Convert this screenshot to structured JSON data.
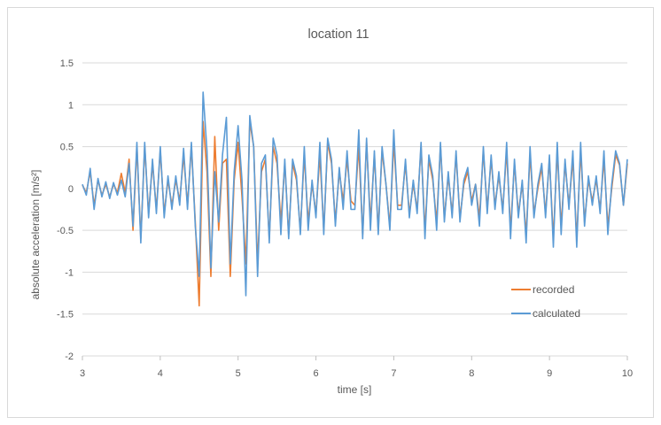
{
  "chart_data": {
    "type": "line",
    "title": "location 11",
    "xlabel": "time [s]",
    "ylabel": "absolute acceleration [m/s²]",
    "xlim": [
      3,
      10
    ],
    "ylim": [
      -2,
      1.5
    ],
    "x_ticks": [
      "3",
      "4",
      "5",
      "6",
      "7",
      "8",
      "9",
      "10"
    ],
    "y_ticks": [
      "-2",
      "-1.5",
      "-1",
      "-0.5",
      "0",
      "0.5",
      "1",
      "1.5"
    ],
    "grid": "horizontal",
    "legend_position": "bottom-right",
    "series": [
      {
        "name": "recorded",
        "color": "#ed7d31",
        "x": [
          3.0,
          3.05,
          3.1,
          3.15,
          3.2,
          3.25,
          3.3,
          3.35,
          3.4,
          3.45,
          3.5,
          3.55,
          3.6,
          3.65,
          3.7,
          3.75,
          3.8,
          3.85,
          3.9,
          3.95,
          4.0,
          4.05,
          4.1,
          4.15,
          4.2,
          4.25,
          4.3,
          4.35,
          4.4,
          4.45,
          4.5,
          4.55,
          4.6,
          4.65,
          4.7,
          4.75,
          4.8,
          4.85,
          4.9,
          4.95,
          5.0,
          5.05,
          5.1,
          5.15,
          5.2,
          5.25,
          5.3,
          5.35,
          5.4,
          5.45,
          5.5,
          5.55,
          5.6,
          5.65,
          5.7,
          5.75,
          5.8,
          5.85,
          5.9,
          5.95,
          6.0,
          6.05,
          6.1,
          6.15,
          6.2,
          6.25,
          6.3,
          6.35,
          6.4,
          6.45,
          6.5,
          6.55,
          6.6,
          6.65,
          6.7,
          6.75,
          6.8,
          6.85,
          6.9,
          6.95,
          7.0,
          7.05,
          7.1,
          7.15,
          7.2,
          7.25,
          7.3,
          7.35,
          7.4,
          7.45,
          7.5,
          7.55,
          7.6,
          7.65,
          7.7,
          7.75,
          7.8,
          7.85,
          7.9,
          7.95,
          8.0,
          8.05,
          8.1,
          8.15,
          8.2,
          8.25,
          8.3,
          8.35,
          8.4,
          8.45,
          8.5,
          8.55,
          8.6,
          8.65,
          8.7,
          8.75,
          8.8,
          8.85,
          8.9,
          8.95,
          9.0,
          9.05,
          9.1,
          9.15,
          9.2,
          9.25,
          9.3,
          9.35,
          9.4,
          9.45,
          9.5,
          9.55,
          9.6,
          9.65,
          9.7,
          9.75,
          9.8,
          9.85,
          9.9,
          9.95,
          10.0
        ],
        "values": [
          0.04,
          -0.05,
          0.2,
          -0.2,
          0.1,
          -0.08,
          0.05,
          -0.1,
          0.05,
          -0.05,
          0.18,
          -0.05,
          0.35,
          -0.5,
          0.5,
          -0.6,
          0.5,
          -0.3,
          0.3,
          -0.25,
          0.45,
          -0.3,
          0.1,
          -0.2,
          0.1,
          -0.15,
          0.4,
          -0.2,
          0.5,
          -0.4,
          -1.4,
          0.8,
          0.2,
          -1.05,
          0.62,
          -0.5,
          0.3,
          0.35,
          -1.05,
          0.1,
          0.55,
          -0.1,
          -0.9,
          0.8,
          0.5,
          -0.9,
          0.2,
          0.35,
          -0.6,
          0.5,
          0.3,
          -0.4,
          0.3,
          -0.55,
          0.3,
          0.1,
          -0.5,
          0.4,
          -0.4,
          0.05,
          -0.3,
          0.4,
          -0.5,
          0.55,
          0.3,
          -0.4,
          0.2,
          -0.15,
          0.35,
          -0.15,
          -0.2,
          0.5,
          -0.55,
          0.55,
          -0.4,
          0.4,
          -0.5,
          0.45,
          0.05,
          -0.45,
          0.55,
          -0.2,
          -0.2,
          0.3,
          -0.3,
          0.05,
          -0.25,
          0.5,
          -0.5,
          0.35,
          0.1,
          -0.4,
          0.5,
          -0.35,
          0.15,
          -0.3,
          0.4,
          -0.35,
          0.05,
          0.2,
          -0.15,
          0.05,
          -0.35,
          0.45,
          -0.25,
          0.35,
          -0.2,
          0.15,
          -0.25,
          0.45,
          -0.5,
          0.3,
          -0.3,
          0.05,
          -0.55,
          0.4,
          -0.3,
          0.0,
          0.25,
          -0.3,
          0.35,
          -0.6,
          0.45,
          -0.45,
          0.3,
          -0.2,
          0.35,
          -0.6,
          0.45,
          -0.4,
          0.1,
          -0.15,
          0.1,
          -0.25,
          0.35,
          -0.45,
          0.0,
          0.4,
          0.28,
          -0.2,
          0.3
        ],
        "stroke_width": 1.6
      },
      {
        "name": "calculated",
        "color": "#5b9bd5",
        "x": [
          3.0,
          3.05,
          3.1,
          3.15,
          3.2,
          3.25,
          3.3,
          3.35,
          3.4,
          3.45,
          3.5,
          3.55,
          3.6,
          3.65,
          3.7,
          3.75,
          3.8,
          3.85,
          3.9,
          3.95,
          4.0,
          4.05,
          4.1,
          4.15,
          4.2,
          4.25,
          4.3,
          4.35,
          4.4,
          4.45,
          4.5,
          4.55,
          4.6,
          4.65,
          4.7,
          4.75,
          4.8,
          4.85,
          4.9,
          4.95,
          5.0,
          5.05,
          5.1,
          5.15,
          5.2,
          5.25,
          5.3,
          5.35,
          5.4,
          5.45,
          5.5,
          5.55,
          5.6,
          5.65,
          5.7,
          5.75,
          5.8,
          5.85,
          5.9,
          5.95,
          6.0,
          6.05,
          6.1,
          6.15,
          6.2,
          6.25,
          6.3,
          6.35,
          6.4,
          6.45,
          6.5,
          6.55,
          6.6,
          6.65,
          6.7,
          6.75,
          6.8,
          6.85,
          6.9,
          6.95,
          7.0,
          7.05,
          7.1,
          7.15,
          7.2,
          7.25,
          7.3,
          7.35,
          7.4,
          7.45,
          7.5,
          7.55,
          7.6,
          7.65,
          7.7,
          7.75,
          7.8,
          7.85,
          7.9,
          7.95,
          8.0,
          8.05,
          8.1,
          8.15,
          8.2,
          8.25,
          8.3,
          8.35,
          8.4,
          8.45,
          8.5,
          8.55,
          8.6,
          8.65,
          8.7,
          8.75,
          8.8,
          8.85,
          8.9,
          8.95,
          9.0,
          9.05,
          9.1,
          9.15,
          9.2,
          9.25,
          9.3,
          9.35,
          9.4,
          9.45,
          9.5,
          9.55,
          9.6,
          9.65,
          9.7,
          9.75,
          9.8,
          9.85,
          9.9,
          9.95,
          10.0
        ],
        "values": [
          0.05,
          -0.08,
          0.24,
          -0.25,
          0.12,
          -0.1,
          0.08,
          -0.12,
          0.07,
          -0.08,
          0.1,
          -0.1,
          0.3,
          -0.45,
          0.55,
          -0.65,
          0.55,
          -0.35,
          0.35,
          -0.3,
          0.5,
          -0.35,
          0.15,
          -0.25,
          0.15,
          -0.2,
          0.48,
          -0.25,
          0.55,
          -0.45,
          -1.05,
          1.15,
          0.45,
          -0.95,
          0.2,
          -0.4,
          0.4,
          0.85,
          -0.9,
          0.2,
          0.75,
          0.1,
          -1.28,
          0.87,
          0.5,
          -1.05,
          0.3,
          0.4,
          -0.65,
          0.6,
          0.4,
          -0.55,
          0.35,
          -0.6,
          0.35,
          0.15,
          -0.55,
          0.5,
          -0.5,
          0.1,
          -0.35,
          0.55,
          -0.55,
          0.6,
          0.35,
          -0.45,
          0.25,
          -0.25,
          0.45,
          -0.25,
          -0.25,
          0.7,
          -0.6,
          0.6,
          -0.5,
          0.45,
          -0.55,
          0.5,
          0.05,
          -0.5,
          0.7,
          -0.25,
          -0.25,
          0.35,
          -0.35,
          0.1,
          -0.3,
          0.55,
          -0.6,
          0.4,
          0.15,
          -0.5,
          0.55,
          -0.4,
          0.2,
          -0.35,
          0.45,
          -0.4,
          0.1,
          0.25,
          -0.2,
          0.05,
          -0.45,
          0.5,
          -0.3,
          0.4,
          -0.25,
          0.2,
          -0.3,
          0.55,
          -0.6,
          0.35,
          -0.35,
          0.1,
          -0.65,
          0.5,
          -0.35,
          0.05,
          0.3,
          -0.35,
          0.4,
          -0.7,
          0.55,
          -0.55,
          0.35,
          -0.25,
          0.45,
          -0.7,
          0.55,
          -0.45,
          0.15,
          -0.2,
          0.15,
          -0.3,
          0.45,
          -0.55,
          0.05,
          0.45,
          0.3,
          -0.2,
          0.35
        ],
        "stroke_width": 1.6
      }
    ]
  }
}
